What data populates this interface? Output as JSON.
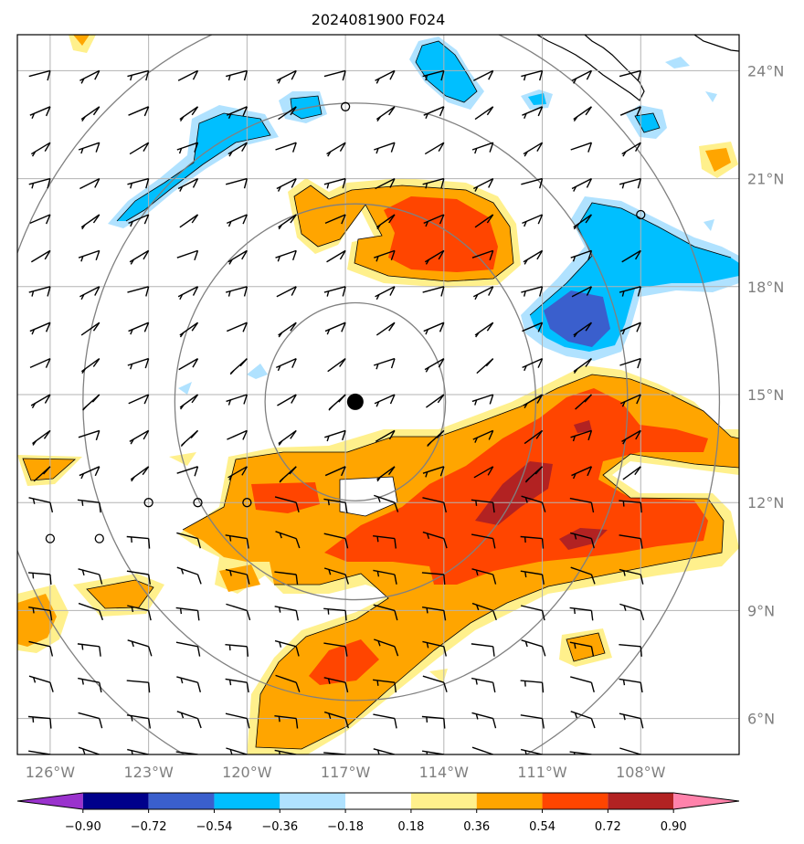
{
  "title": "2024081900 F024",
  "map": {
    "lon_range": [
      -127,
      -105
    ],
    "lat_range": [
      5,
      25
    ],
    "lon_ticks": [
      {
        "value": -126,
        "label": "126°W"
      },
      {
        "value": -123,
        "label": "123°W"
      },
      {
        "value": -120,
        "label": "120°W"
      },
      {
        "value": -117,
        "label": "117°W"
      },
      {
        "value": -114,
        "label": "114°W"
      },
      {
        "value": -111,
        "label": "111°W"
      },
      {
        "value": -108,
        "label": "108°W"
      }
    ],
    "lat_ticks": [
      {
        "value": 6,
        "label": "6°N"
      },
      {
        "value": 9,
        "label": "9°N"
      },
      {
        "value": 12,
        "label": "12°N"
      },
      {
        "value": 15,
        "label": "15°N"
      },
      {
        "value": 18,
        "label": "18°N"
      },
      {
        "value": 21,
        "label": "21°N"
      },
      {
        "value": 24,
        "label": "24°N"
      }
    ],
    "storm_center": {
      "lon": -116.7,
      "lat": 14.8
    },
    "range_rings_deg": [
      2.75,
      5.5,
      8.3,
      11.1
    ]
  },
  "colorbar": {
    "levels": [
      "−0.90",
      "−0.72",
      "−0.54",
      "−0.36",
      "−0.18",
      "0.18",
      "0.36",
      "0.54",
      "0.72",
      "0.90"
    ],
    "colors": [
      "#9a32cd",
      "#00008b",
      "#3a5fcd",
      "#00bfff",
      "#b0e2ff",
      "#ffffff",
      "#fff08c",
      "#ffa500",
      "#ff4500",
      "#b22222",
      "#ff82ab"
    ]
  },
  "colors": {
    "grid": "#b3b3b3",
    "rings": "#808080",
    "coast": "#000000"
  }
}
